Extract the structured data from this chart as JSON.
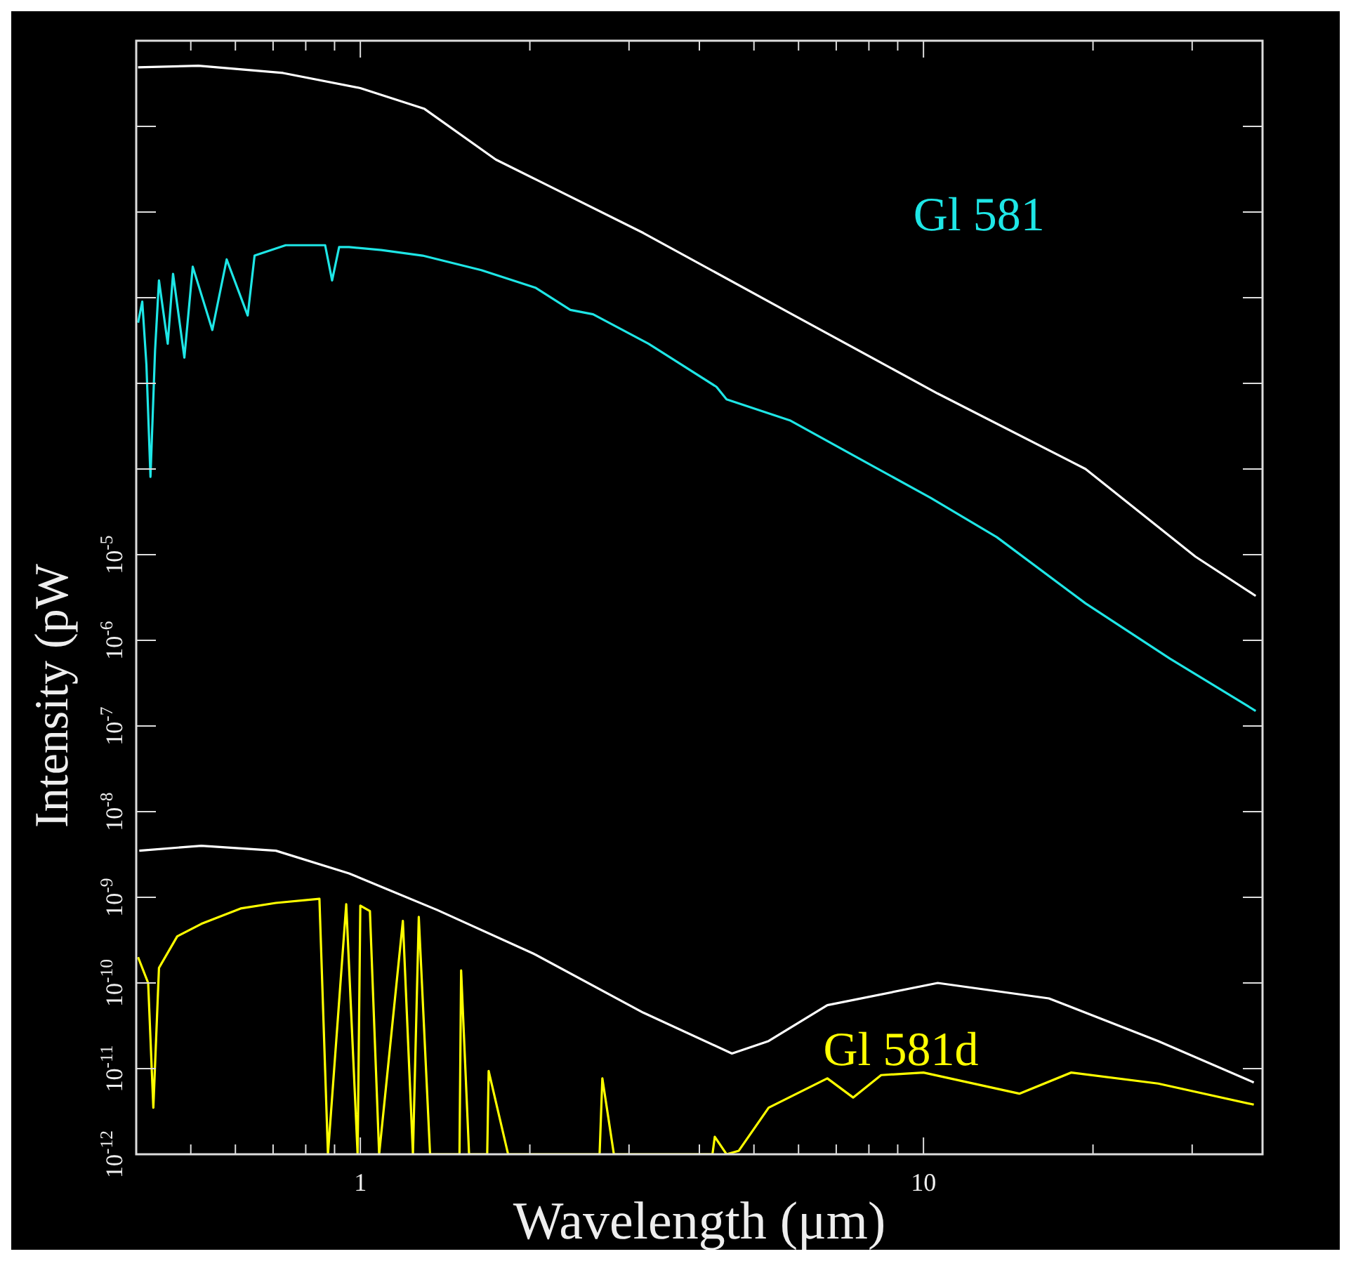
{
  "chart_data": {
    "type": "line",
    "xlabel": "Wavelength (μm)",
    "ylabel": "Intensity (pW",
    "log": "xy",
    "line_style": "solid",
    "xlim": [
      0.4,
      40
    ],
    "ylim": [
      1e-12,
      10
    ],
    "xticks": [
      {
        "value": 0.4,
        "label": null
      },
      {
        "value": 0.5,
        "label": null
      },
      {
        "value": 0.6,
        "label": null
      },
      {
        "value": 0.7,
        "label": null
      },
      {
        "value": 0.8,
        "label": null
      },
      {
        "value": 0.9,
        "label": null
      },
      1,
      {
        "value": 2,
        "label": null
      },
      {
        "value": 3,
        "label": null
      },
      {
        "value": 4,
        "label": null
      },
      {
        "value": 5,
        "label": null
      },
      {
        "value": 6,
        "label": null
      },
      {
        "value": 7,
        "label": null
      },
      {
        "value": 8,
        "label": null
      },
      {
        "value": 9,
        "label": null
      },
      10,
      {
        "value": 20,
        "label": null
      },
      {
        "value": 30,
        "label": null
      },
      {
        "value": 40,
        "label": null
      }
    ],
    "yticks": [
      {
        "value": 1e-12,
        "label": "10$^{-12}$"
      },
      {
        "value": 1e-11,
        "label": "10$^{-11}$"
      },
      {
        "value": 1e-10,
        "label": "10$^{-10}$"
      },
      {
        "value": 1e-09,
        "label": "10$^{-9}$"
      },
      {
        "value": 1e-08,
        "label": "10$^{-8}$"
      },
      {
        "value": 1e-07,
        "label": "10$^{-7}$"
      },
      {
        "value": 1e-06,
        "label": "10$^{-6}$"
      },
      {
        "value": 1e-05,
        "label": "10$^{-5}$"
      },
      {
        "value": 0.0001,
        "label": null
      },
      {
        "value": 0.001,
        "label": null
      },
      {
        "value": 0.01,
        "label": null
      },
      {
        "value": 0.1,
        "label": null
      },
      {
        "value": 1,
        "label": null
      },
      {
        "value": 10,
        "label": null
      }
    ],
    "series": [
      {
        "color": "#ffffff",
        "x": [
          0.403,
          0.516,
          0.729,
          1,
          1.3,
          1.74,
          3.18,
          5.82,
          10.6,
          19.4,
          30.4,
          38.9
        ],
        "values": [
          4.9,
          5.1,
          4.2,
          2.8,
          1.6,
          0.41,
          0.057,
          0.0065,
          0.00076,
          0.0001,
          9.5e-06,
          3.3e-06
        ]
      },
      {
        "name": "Gl 581",
        "color": "#1ee6e6",
        "x": [
          0.403,
          0.41,
          0.417,
          0.424,
          0.432,
          0.439,
          0.455,
          0.465,
          0.487,
          0.504,
          0.546,
          0.579,
          0.631,
          0.649,
          0.737,
          0.866,
          0.891,
          0.917,
          0.955,
          1.09,
          1.29,
          1.64,
          2.05,
          2.36,
          2.59,
          3.25,
          4.29,
          4.47,
          5.79,
          7.85,
          10.3,
          13.5,
          19.4,
          27.4,
          38.9
        ],
        "values": [
          0.0051,
          0.009,
          0.00166,
          8.1e-05,
          0.0024,
          0.0159,
          0.0029,
          0.019,
          0.002,
          0.023,
          0.0042,
          0.028,
          0.0062,
          0.031,
          0.041,
          0.041,
          0.0159,
          0.039,
          0.039,
          0.036,
          0.031,
          0.021,
          0.013,
          0.0072,
          0.0064,
          0.0029,
          0.00091,
          0.00065,
          0.00037,
          0.000123,
          4.6e-05,
          1.6e-05,
          2.7e-06,
          6.1e-07,
          1.5e-07
        ]
      },
      {
        "color": "#ffffff",
        "x": [
          0.405,
          0.522,
          0.708,
          0.955,
          1.37,
          2.03,
          3.18,
          4.57,
          5.31,
          6.75,
          10.6,
          16.7,
          26.1,
          38.6
        ],
        "values": [
          3.5e-09,
          4e-09,
          3.5e-09,
          1.9e-09,
          7.1e-10,
          2.2e-10,
          4.5e-11,
          1.5e-11,
          2.1e-11,
          5.5e-11,
          1e-10,
          6.6e-11,
          2.1e-11,
          6.9e-12
        ]
      },
      {
        "name": "Gl 581d",
        "color": "#ffff00",
        "x": [
          0.403,
          0.42,
          0.429,
          0.439,
          0.473,
          0.522,
          0.613,
          0.708,
          0.846,
          0.876,
          0.944,
          0.989,
          1.0,
          1.04,
          1.08,
          1.19,
          1.24,
          1.27,
          1.33,
          1.5,
          1.51,
          1.56,
          1.68,
          1.69,
          1.83,
          2.66,
          2.69,
          2.82,
          4.22,
          4.26,
          4.47,
          4.7,
          5.31,
          6.75,
          7.5,
          8.41,
          10.0,
          14.8,
          18.3,
          26.1,
          38.6
        ],
        "values": [
          2e-10,
          1e-10,
          3.5e-12,
          1.5e-10,
          3.5e-10,
          4.9e-10,
          7.4e-10,
          8.6e-10,
          9.6e-10,
          1e-12,
          8.3e-10,
          1e-12,
          8e-10,
          6.9e-10,
          1e-12,
          5.3e-10,
          1e-12,
          5.9e-10,
          1e-12,
          1e-12,
          1.4e-10,
          1e-12,
          1e-12,
          9.4e-12,
          1e-12,
          1e-12,
          7.7e-12,
          1e-12,
          1e-12,
          1.6e-12,
          1e-12,
          1.1e-12,
          3.5e-12,
          7.7e-12,
          4.6e-12,
          8.4e-12,
          9e-12,
          5.1e-12,
          9e-12,
          6.7e-12,
          3.8e-12
        ]
      }
    ]
  }
}
